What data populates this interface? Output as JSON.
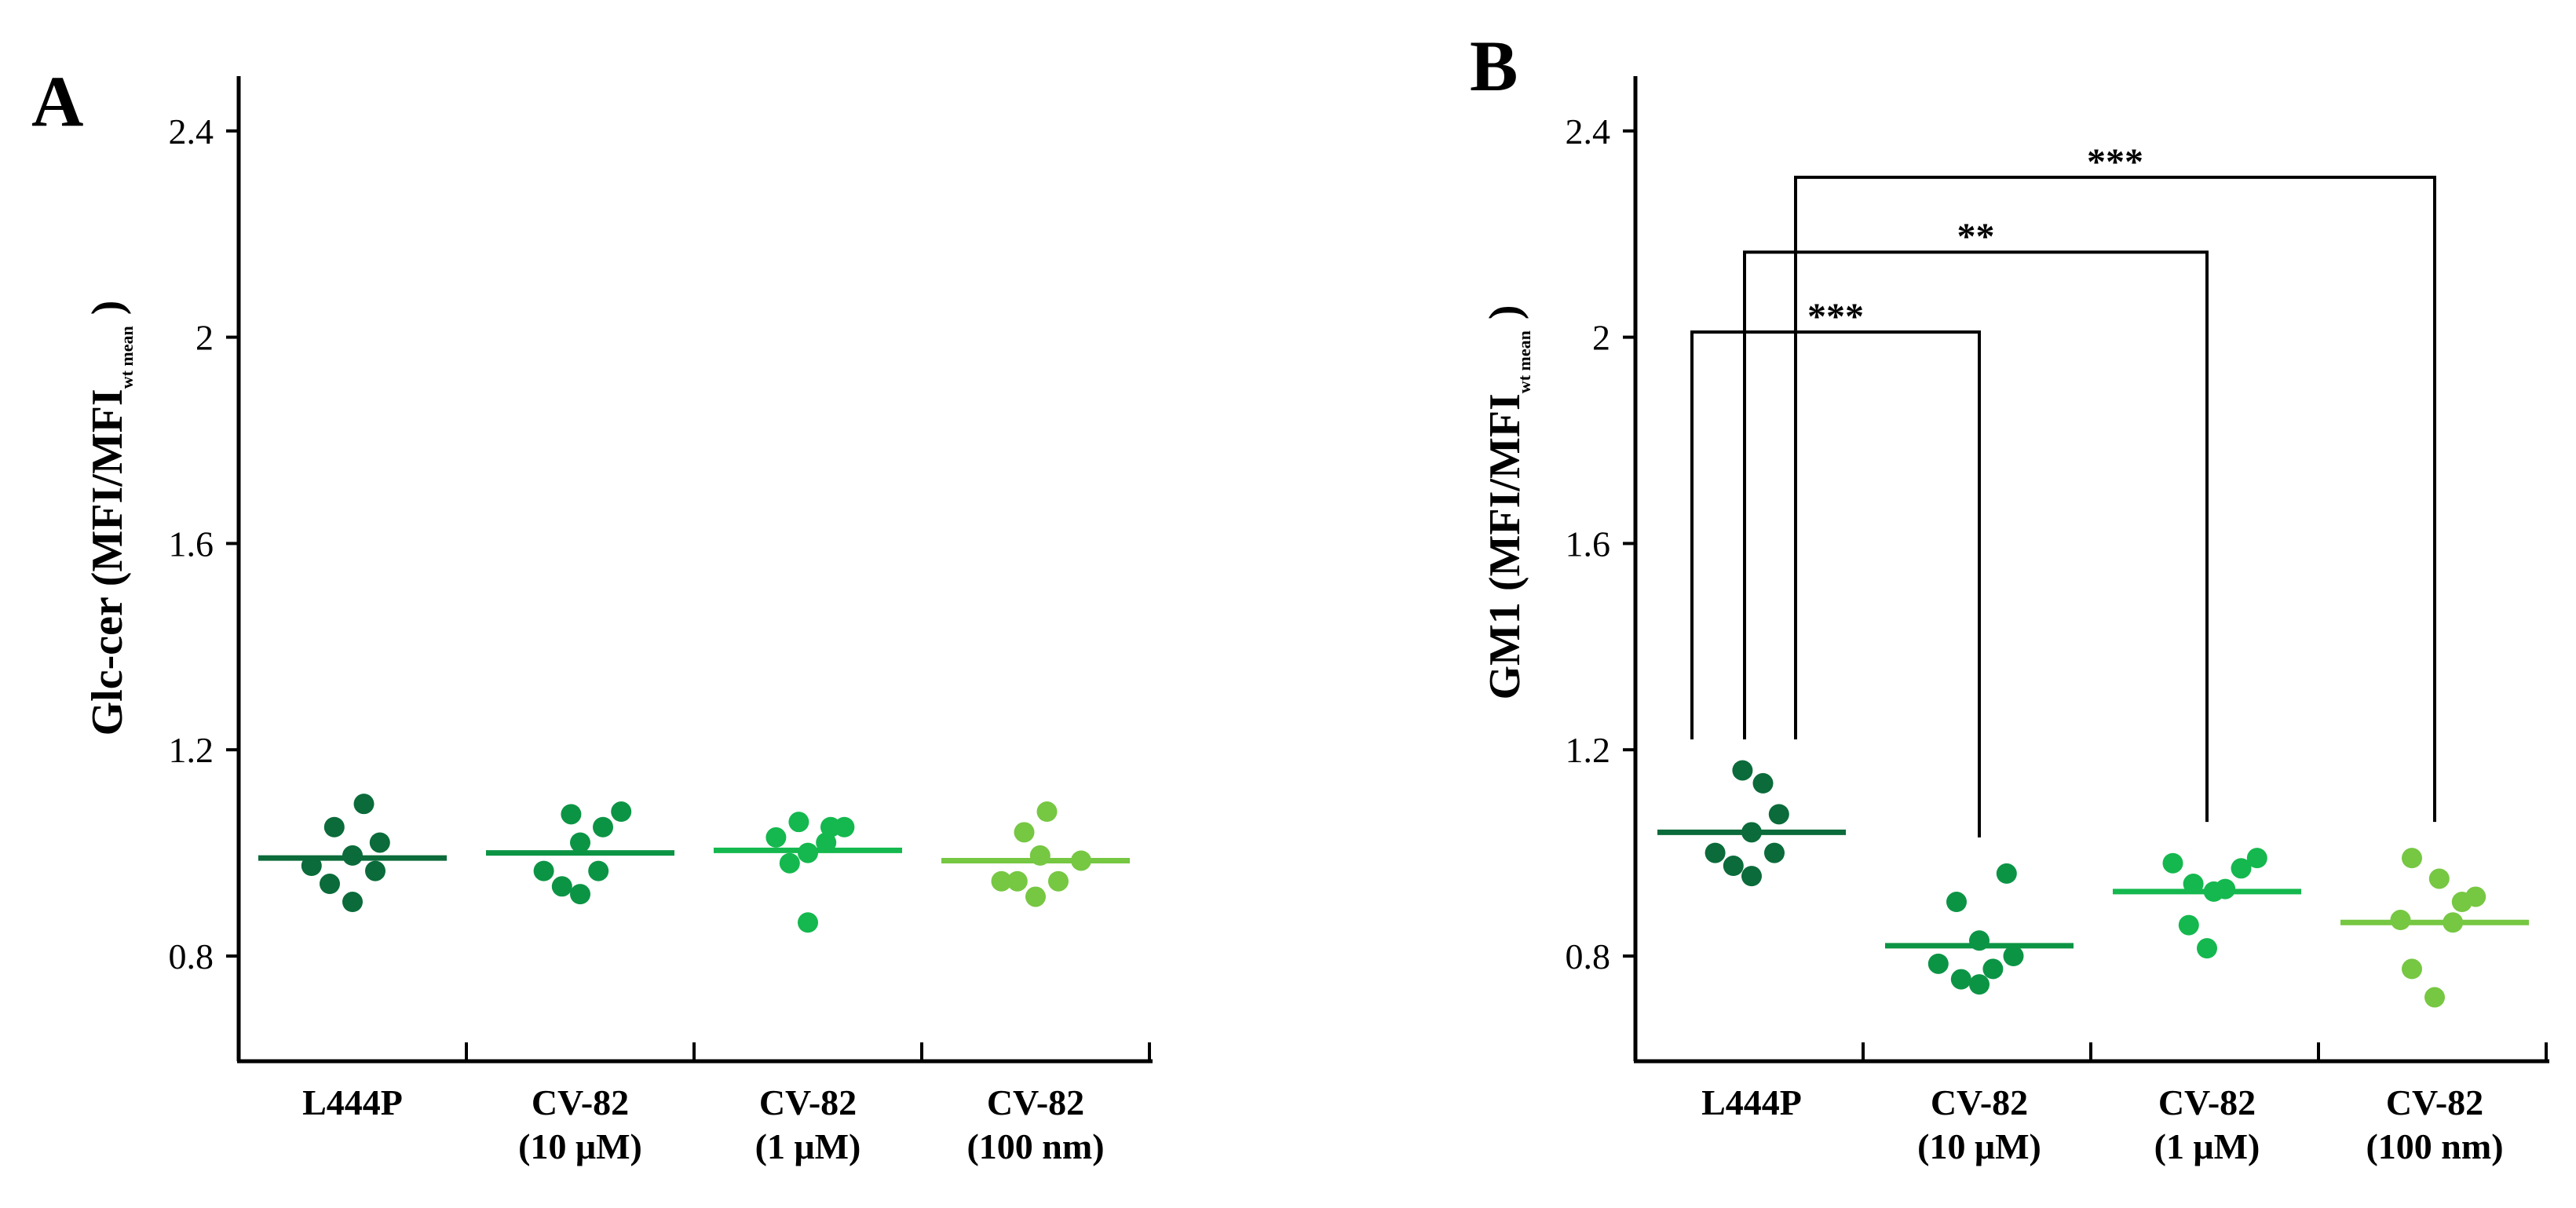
{
  "chart_data": [
    {
      "type": "scatter",
      "panel": "A",
      "ylabel": "Glc-cer (MFI/MFI",
      "ylabel_sub": "wt mean",
      "ylabel_close": ")",
      "ylim": [
        0.6,
        2.5
      ],
      "yticks": [
        0.8,
        1.2,
        1.6,
        2,
        2.4
      ],
      "ytick_labels": [
        "0.8",
        "1.2",
        "1.6",
        "2",
        "2.4"
      ],
      "categories": [
        "L444P",
        "CV-82\n(10 μM)",
        "CV-82\n(1 μM)",
        "CV-82\n(100 nm)"
      ],
      "colors": [
        "#0b6b3a",
        "#0c9445",
        "#14b84e",
        "#76c742"
      ],
      "series": [
        {
          "points": [
            [
              -0.18,
              0.975
            ],
            [
              -0.1,
              0.94
            ],
            [
              -0.08,
              1.05
            ],
            [
              0.0,
              0.995
            ],
            [
              0.0,
              0.905
            ],
            [
              0.05,
              1.095
            ],
            [
              0.1,
              0.965
            ],
            [
              0.12,
              1.02
            ]
          ],
          "mean": 0.99
        },
        {
          "points": [
            [
              -0.16,
              0.965
            ],
            [
              -0.08,
              0.935
            ],
            [
              -0.04,
              1.075
            ],
            [
              0.0,
              0.92
            ],
            [
              0.0,
              1.02
            ],
            [
              0.08,
              0.965
            ],
            [
              0.1,
              1.05
            ],
            [
              0.18,
              1.08
            ]
          ],
          "mean": 1.0
        },
        {
          "points": [
            [
              -0.14,
              1.03
            ],
            [
              -0.08,
              0.98
            ],
            [
              -0.04,
              1.06
            ],
            [
              0.0,
              0.865
            ],
            [
              0.0,
              1.0
            ],
            [
              0.08,
              1.02
            ],
            [
              0.1,
              1.05
            ],
            [
              0.16,
              1.05
            ]
          ],
          "mean": 1.005
        },
        {
          "points": [
            [
              -0.15,
              0.945
            ],
            [
              -0.08,
              0.945
            ],
            [
              -0.05,
              1.04
            ],
            [
              0.0,
              0.915
            ],
            [
              0.02,
              0.995
            ],
            [
              0.05,
              1.08
            ],
            [
              0.1,
              0.945
            ],
            [
              0.2,
              0.985
            ]
          ],
          "mean": 0.985
        }
      ]
    },
    {
      "type": "scatter",
      "panel": "B",
      "ylabel": "GM1 (MFI/MFI",
      "ylabel_sub": "wt mean",
      "ylabel_close": ")",
      "ylim": [
        0.6,
        2.5
      ],
      "yticks": [
        0.8,
        1.2,
        1.6,
        2,
        2.4
      ],
      "ytick_labels": [
        "0.8",
        "1.2",
        "1.6",
        "2",
        "2.4"
      ],
      "categories": [
        "L444P",
        "CV-82\n(10 μM)",
        "CV-82\n(1 μM)",
        "CV-82\n(100 nm)"
      ],
      "colors": [
        "#0b6b3a",
        "#0c9445",
        "#14b84e",
        "#76c742"
      ],
      "series": [
        {
          "points": [
            [
              -0.16,
              1.0
            ],
            [
              -0.08,
              0.975
            ],
            [
              -0.04,
              1.16
            ],
            [
              0.0,
              1.04
            ],
            [
              0.0,
              0.955
            ],
            [
              0.05,
              1.135
            ],
            [
              0.1,
              1.0
            ],
            [
              0.12,
              1.075
            ]
          ],
          "mean": 1.04
        },
        {
          "points": [
            [
              -0.18,
              0.785
            ],
            [
              -0.1,
              0.905
            ],
            [
              -0.08,
              0.755
            ],
            [
              0.0,
              0.83
            ],
            [
              0.0,
              0.745
            ],
            [
              0.06,
              0.775
            ],
            [
              0.12,
              0.96
            ],
            [
              0.15,
              0.8
            ]
          ],
          "mean": 0.82
        },
        {
          "points": [
            [
              -0.15,
              0.98
            ],
            [
              -0.08,
              0.86
            ],
            [
              -0.06,
              0.94
            ],
            [
              0.0,
              0.815
            ],
            [
              0.03,
              0.925
            ],
            [
              0.08,
              0.93
            ],
            [
              0.15,
              0.97
            ],
            [
              0.22,
              0.99
            ]
          ],
          "mean": 0.925
        },
        {
          "points": [
            [
              -0.15,
              0.87
            ],
            [
              -0.1,
              0.99
            ],
            [
              -0.1,
              0.775
            ],
            [
              0.0,
              0.72
            ],
            [
              0.02,
              0.95
            ],
            [
              0.08,
              0.865
            ],
            [
              0.12,
              0.905
            ],
            [
              0.18,
              0.915
            ]
          ],
          "mean": 0.865
        }
      ],
      "significance": [
        {
          "from": 0,
          "to": 1,
          "label": "***"
        },
        {
          "from": 0,
          "to": 2,
          "label": "**"
        },
        {
          "from": 0,
          "to": 3,
          "label": "***"
        }
      ]
    }
  ]
}
